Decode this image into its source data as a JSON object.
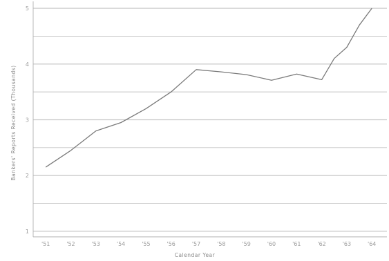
{
  "chart_data": {
    "type": "line",
    "xlabel": "Calendar Year",
    "ylabel": "Bankers' Reports Received (Thousands)",
    "ylim": [
      1,
      5
    ],
    "y_ticks": [
      "1",
      "2",
      "3",
      "4",
      "5"
    ],
    "x_tick_labels": [
      "'51",
      "'52",
      "'53",
      "'54",
      "'55",
      "'56",
      "'57",
      "'58",
      "'59",
      "'60",
      "'61",
      "'62",
      "'63",
      "'64"
    ],
    "grid": "horizontal",
    "legend": "none",
    "line_color": "#7a7a7a",
    "grid_color": "#c4c4c4",
    "series": [
      {
        "x": [
          1951.0,
          1952.0,
          1953.0,
          1954.0,
          1955.0,
          1956.0,
          1957.0,
          1958.0,
          1959.0,
          1960.0,
          1961.0,
          1962.0,
          1962.5,
          1963.0,
          1963.5,
          1964.0
        ],
        "values": [
          2.15,
          2.45,
          2.8,
          2.95,
          3.2,
          3.5,
          3.9,
          3.86,
          3.81,
          3.71,
          3.82,
          3.72,
          4.1,
          4.3,
          4.7,
          5.0
        ]
      }
    ]
  }
}
